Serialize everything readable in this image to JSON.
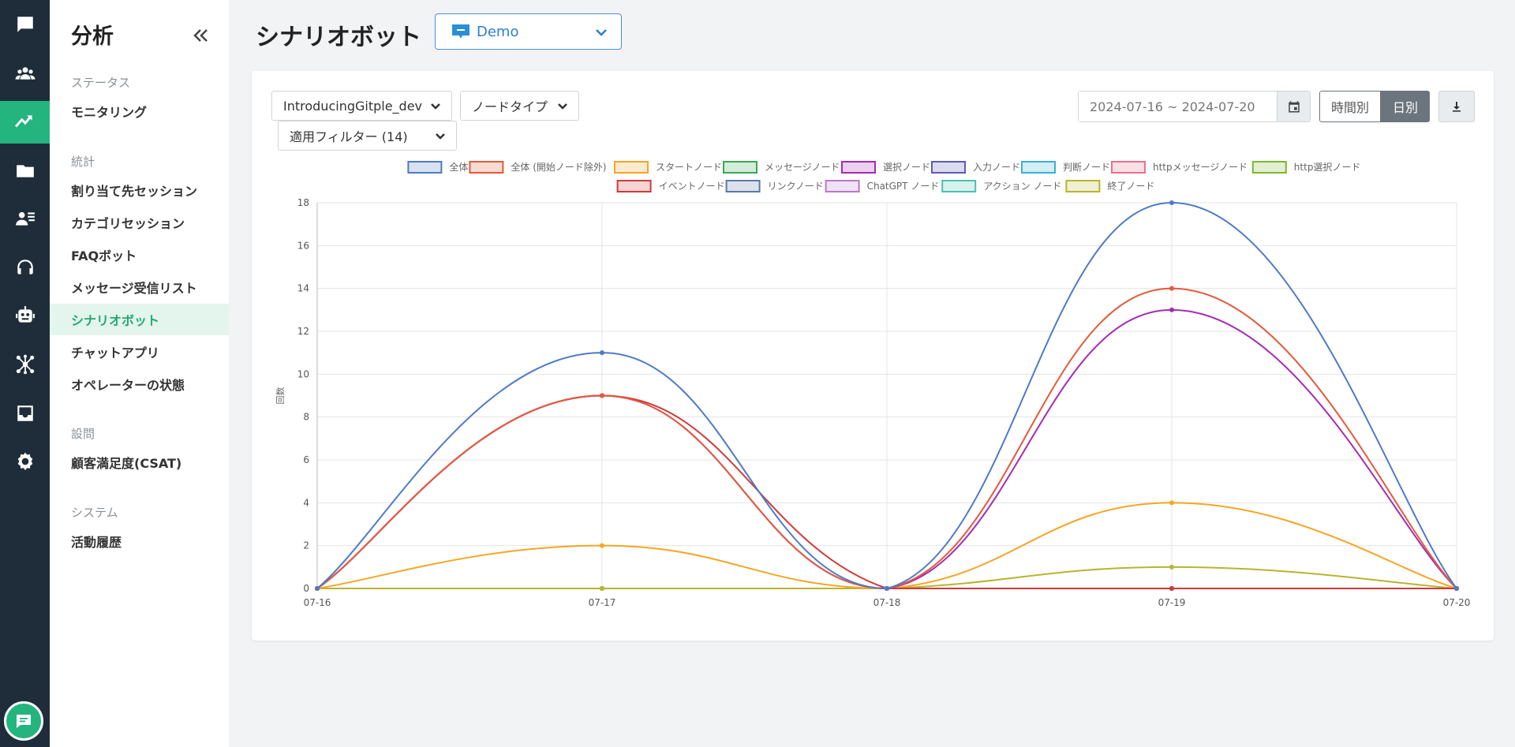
{
  "rail": {
    "items": [
      {
        "name": "chat-icon",
        "active": false
      },
      {
        "name": "users-icon",
        "active": false
      },
      {
        "name": "analytics-icon",
        "active": true
      },
      {
        "name": "folder-icon",
        "active": false
      },
      {
        "name": "contact-list-icon",
        "active": false
      },
      {
        "name": "headset-icon",
        "active": false
      },
      {
        "name": "bot-icon",
        "active": false
      },
      {
        "name": "integration-icon",
        "active": false
      },
      {
        "name": "inbox-icon",
        "active": false
      },
      {
        "name": "gear-icon",
        "active": false
      }
    ],
    "bottom": "chat-widget-icon"
  },
  "submenu": {
    "title": "分析",
    "sections": [
      {
        "label": "ステータス",
        "items": [
          "モニタリング"
        ]
      },
      {
        "label": "統計",
        "items": [
          "割り当て先セッション",
          "カテゴリセッション",
          "FAQボット",
          "メッセージ受信リスト",
          "シナリオボット",
          "チャットアプリ",
          "オペレーターの状態"
        ]
      },
      {
        "label": "設問",
        "items": [
          "顧客満足度(CSAT)"
        ]
      },
      {
        "label": "システム",
        "items": [
          "活動履歴"
        ]
      }
    ],
    "active_item": "シナリオボット"
  },
  "header": {
    "title": "シナリオボット",
    "bot_select": "Demo"
  },
  "filters": {
    "scenario": "IntroducingGitple_dev",
    "node_type": "ノードタイプ",
    "applied_filter": "適用フィルター (14)",
    "date_range": "2024-07-16 ~ 2024-07-20",
    "hourly": "時間別",
    "daily": "日別"
  },
  "colors": {
    "accent": "#24b47e",
    "rail_bg": "#1f2d3a"
  },
  "chart_data": {
    "type": "line",
    "x": [
      "07-16",
      "07-17",
      "07-18",
      "07-19",
      "07-20"
    ],
    "ylabel": "回数",
    "ylim": [
      0,
      18
    ],
    "yticks": [
      0,
      2,
      4,
      6,
      8,
      10,
      12,
      14,
      16,
      18
    ],
    "grid": true,
    "legend_position": "top",
    "series": [
      {
        "name": "全体",
        "color": "#4e7ac7",
        "values": [
          0,
          11,
          0,
          18,
          0
        ]
      },
      {
        "name": "全体 (開始ノード除外)",
        "color": "#e35a3a",
        "values": [
          0,
          9,
          0,
          14,
          0
        ]
      },
      {
        "name": "スタートノード",
        "color": "#f5a623",
        "values": [
          0,
          2,
          0,
          4,
          0
        ]
      },
      {
        "name": "メッセージノード",
        "color": "#3aa856",
        "values": [
          0,
          0,
          0,
          0,
          0
        ]
      },
      {
        "name": "選択ノード",
        "color": "#a42bb4",
        "values": [
          0,
          9,
          0,
          13,
          0
        ]
      },
      {
        "name": "入力ノード",
        "color": "#5c5cb8",
        "values": [
          0,
          0,
          0,
          0,
          0
        ]
      },
      {
        "name": "判断ノード",
        "color": "#3ab0d6",
        "values": [
          0,
          0,
          0,
          0,
          0
        ]
      },
      {
        "name": "httpメッセージノード",
        "color": "#e8708f",
        "values": [
          0,
          0,
          0,
          0,
          0
        ]
      },
      {
        "name": "http選択ノード",
        "color": "#7cb830",
        "values": [
          0,
          0,
          0,
          0,
          0
        ]
      },
      {
        "name": "イベントノード",
        "color": "#d0393a",
        "values": [
          0,
          9,
          0,
          0,
          0
        ]
      },
      {
        "name": "リンクノード",
        "color": "#5a7aa8",
        "values": [
          0,
          0,
          0,
          0,
          0
        ]
      },
      {
        "name": "ChatGPT ノード",
        "color": "#b779c9",
        "values": [
          0,
          0,
          0,
          0,
          0
        ]
      },
      {
        "name": "アクション ノード",
        "color": "#4bc0b0",
        "values": [
          0,
          0,
          0,
          0,
          0
        ]
      },
      {
        "name": "終了ノード",
        "color": "#b8b430",
        "values": [
          0,
          0,
          0,
          1,
          0
        ]
      }
    ]
  }
}
